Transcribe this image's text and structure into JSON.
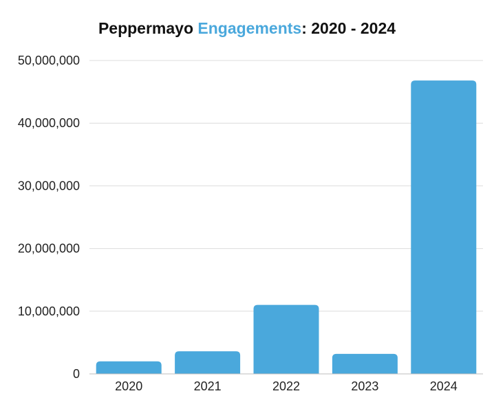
{
  "chart_data": {
    "type": "bar",
    "title_parts": [
      {
        "text": "Peppermayo ",
        "color": "#111111"
      },
      {
        "text": "Engagements",
        "color": "#4aa8dc"
      },
      {
        "text": ": 2020 - 2024",
        "color": "#111111"
      }
    ],
    "categories": [
      "2020",
      "2021",
      "2022",
      "2023",
      "2024"
    ],
    "values": [
      2000000,
      3600000,
      11000000,
      3200000,
      46800000
    ],
    "ylim": [
      0,
      50000000
    ],
    "yticks": [
      0,
      10000000,
      20000000,
      30000000,
      40000000,
      50000000
    ],
    "ytick_labels": [
      "0",
      "10,000,000",
      "20,000,000",
      "30,000,000",
      "40,000,000",
      "50,000,000"
    ],
    "xlabel": "",
    "ylabel": "",
    "grid": true,
    "bar_color": "#4aa8dc"
  }
}
